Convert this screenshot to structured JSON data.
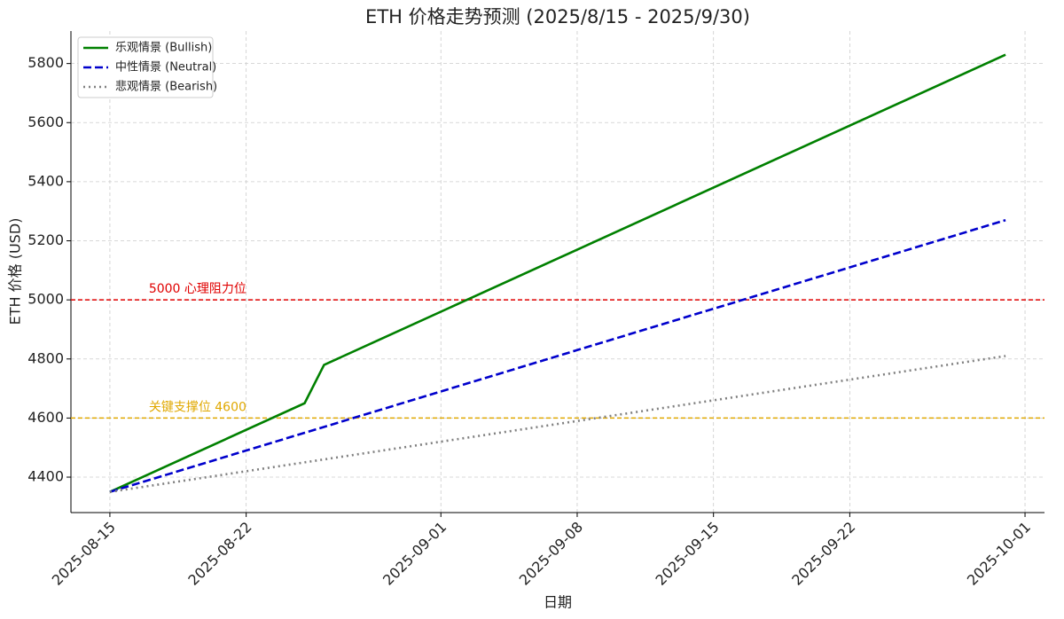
{
  "chart_data": {
    "type": "line",
    "title": "ETH 价格走势预测 (2025/8/15 - 2025/9/30)",
    "x_label": "日期",
    "y_label": "ETH 价格 (USD)",
    "xlim": [
      "2025-08-13",
      "2025-10-02"
    ],
    "ylim": [
      4280,
      5910
    ],
    "xticks": [
      "2025-08-15",
      "2025-08-22",
      "2025-09-01",
      "2025-09-08",
      "2025-09-15",
      "2025-09-22",
      "2025-10-01"
    ],
    "yticks": [
      4400,
      4600,
      4800,
      5000,
      5200,
      5400,
      5600,
      5800
    ],
    "grid": true,
    "legend": "upper left",
    "series": [
      {
        "name": "乐观情景 (Bullish)",
        "color": "#008000",
        "dash": "solid",
        "x": [
          "2025-08-15",
          "2025-08-25",
          "2025-08-26",
          "2025-09-30"
        ],
        "values": [
          4350,
          4650,
          4780,
          5830
        ]
      },
      {
        "name": "中性情景 (Neutral)",
        "color": "#0000cc",
        "dash": "dashed",
        "x": [
          "2025-08-15",
          "2025-09-30"
        ],
        "values": [
          4350,
          5270
        ]
      },
      {
        "name": "悲观情景 (Bearish)",
        "color": "#808080",
        "dash": "dotted",
        "x": [
          "2025-08-15",
          "2025-09-30"
        ],
        "values": [
          4350,
          4810
        ]
      }
    ],
    "reference_lines": [
      {
        "value": 5000,
        "label": "5000 心理阻力位",
        "color": "#e00000",
        "label_x": "2025-08-17"
      },
      {
        "value": 4600,
        "label": "关键支撑位 4600",
        "color": "#e0a800",
        "label_x": "2025-08-17"
      }
    ]
  }
}
